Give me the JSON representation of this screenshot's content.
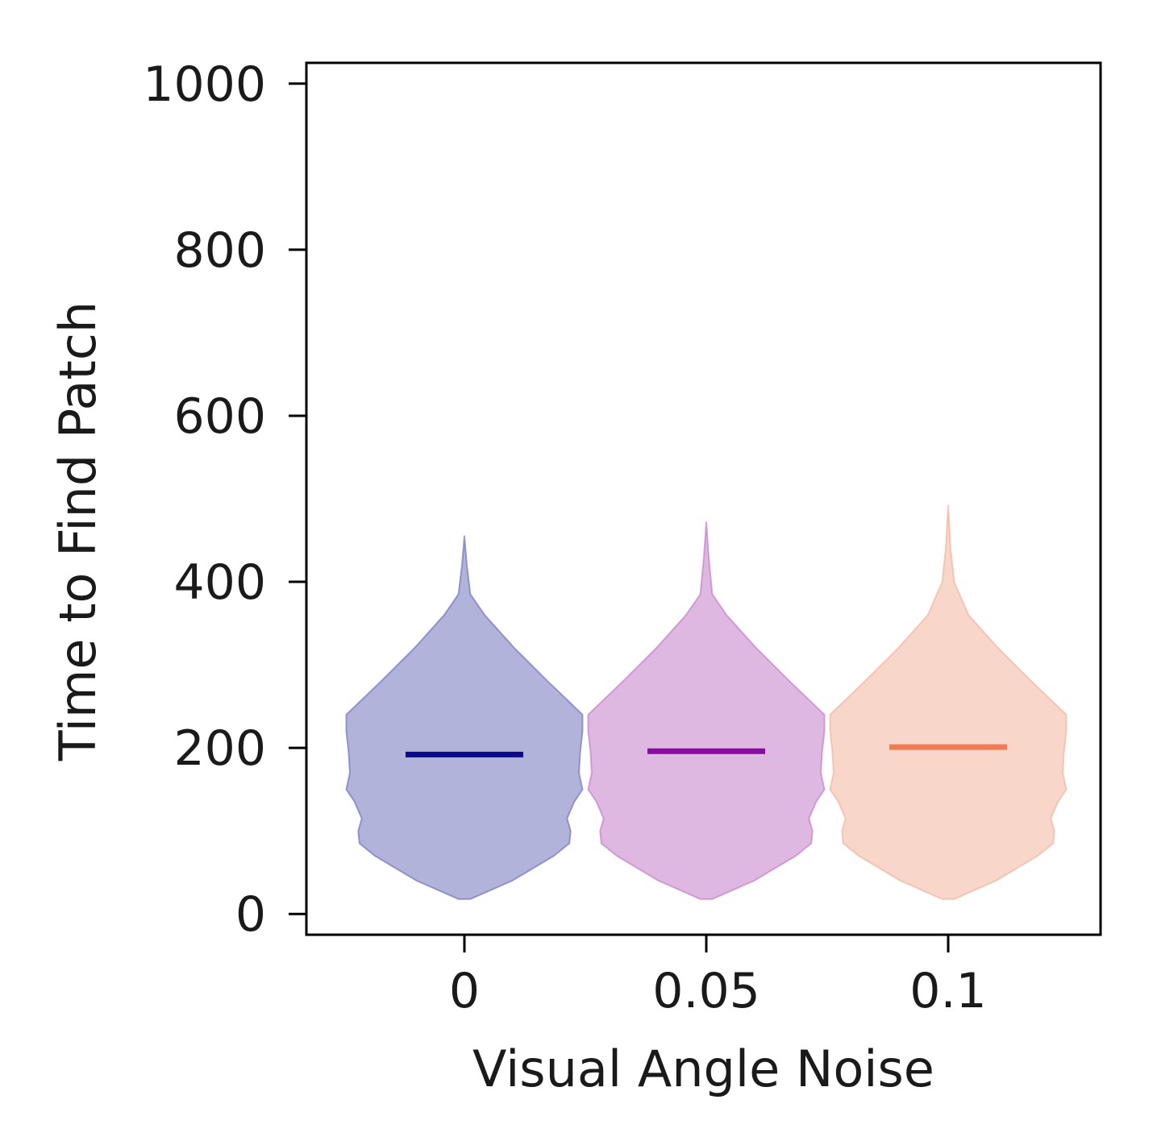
{
  "chart_data": {
    "type": "violin",
    "xlabel": "Visual Angle Noise",
    "ylabel": "Time to Find Patch",
    "ylim": [
      -25,
      1025
    ],
    "yticks": [
      0,
      200,
      400,
      600,
      800,
      1000
    ],
    "grid": false,
    "legend": "none",
    "categories": [
      "0",
      "0.05",
      "0.1"
    ],
    "series": [
      {
        "category": "0",
        "color": "#6567b8",
        "median_color": "#0b0a8c",
        "median": 192,
        "min": 18,
        "max": 455,
        "profile": [
          [
            18,
            0.05
          ],
          [
            40,
            0.4
          ],
          [
            70,
            0.75
          ],
          [
            85,
            0.88
          ],
          [
            100,
            0.89
          ],
          [
            115,
            0.86
          ],
          [
            135,
            0.92
          ],
          [
            150,
            0.99
          ],
          [
            170,
            0.96
          ],
          [
            195,
            0.97
          ],
          [
            220,
            0.99
          ],
          [
            240,
            0.99
          ],
          [
            280,
            0.7
          ],
          [
            320,
            0.42
          ],
          [
            360,
            0.17
          ],
          [
            385,
            0.05
          ],
          [
            420,
            0.02
          ],
          [
            455,
            0.0
          ]
        ]
      },
      {
        "category": "0.05",
        "color": "#c071c4",
        "median_color": "#8b0aa5",
        "median": 196,
        "min": 18,
        "max": 472,
        "profile": [
          [
            18,
            0.05
          ],
          [
            40,
            0.4
          ],
          [
            70,
            0.75
          ],
          [
            85,
            0.88
          ],
          [
            100,
            0.89
          ],
          [
            115,
            0.86
          ],
          [
            135,
            0.92
          ],
          [
            150,
            0.99
          ],
          [
            170,
            0.96
          ],
          [
            195,
            0.97
          ],
          [
            220,
            0.99
          ],
          [
            240,
            0.99
          ],
          [
            280,
            0.7
          ],
          [
            320,
            0.42
          ],
          [
            360,
            0.17
          ],
          [
            385,
            0.05
          ],
          [
            430,
            0.02
          ],
          [
            472,
            0.0
          ]
        ]
      },
      {
        "category": "0.1",
        "color": "#f1ad96",
        "median_color": "#ef7a53",
        "median": 201,
        "min": 18,
        "max": 492,
        "profile": [
          [
            18,
            0.05
          ],
          [
            40,
            0.4
          ],
          [
            70,
            0.75
          ],
          [
            85,
            0.88
          ],
          [
            100,
            0.89
          ],
          [
            115,
            0.86
          ],
          [
            135,
            0.92
          ],
          [
            150,
            0.99
          ],
          [
            170,
            0.96
          ],
          [
            195,
            0.97
          ],
          [
            220,
            0.99
          ],
          [
            240,
            0.99
          ],
          [
            280,
            0.7
          ],
          [
            320,
            0.42
          ],
          [
            360,
            0.17
          ],
          [
            400,
            0.05
          ],
          [
            440,
            0.02
          ],
          [
            492,
            0.0
          ]
        ]
      }
    ]
  }
}
